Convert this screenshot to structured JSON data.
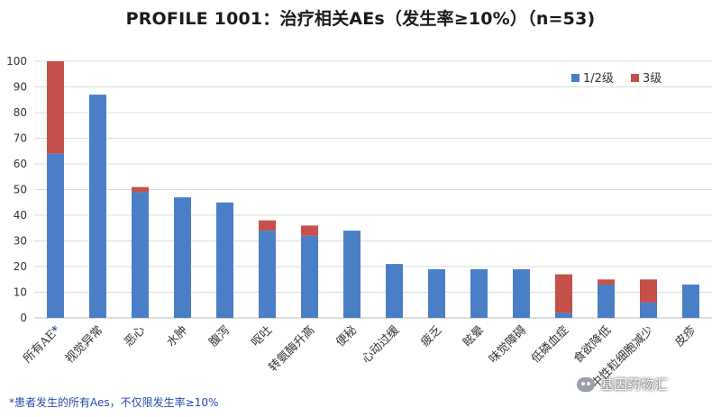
{
  "title": "PROFILE 1001：治疗相关AEs（发生率≥10%）（n=53)",
  "footnote": "*患者发生的所有Aes，不仅限发生率≥10%",
  "watermark": "基因药物汇",
  "colors": {
    "grade12": "#4a7fc7",
    "grade3": "#c6504a",
    "asterisk": "#2a4aa8"
  },
  "chart_data": {
    "type": "bar",
    "stacked": true,
    "categories": [
      "所有AE*",
      "视觉异常",
      "恶心",
      "水肿",
      "腹泻",
      "呕吐",
      "转氨酶升高",
      "便秘",
      "心动过缓",
      "疲乏",
      "眩晕",
      "味觉障碍",
      "低磷血症",
      "食欲降低",
      "中性粒细胞减少",
      "皮疹"
    ],
    "series": [
      {
        "name": "1/2级",
        "values": [
          64,
          87,
          49,
          47,
          45,
          34,
          32,
          34,
          21,
          19,
          19,
          19,
          2,
          13,
          6,
          13
        ]
      },
      {
        "name": "3级",
        "values": [
          36,
          0,
          2,
          0,
          0,
          4,
          4,
          0,
          0,
          0,
          0,
          0,
          15,
          2,
          9,
          0
        ]
      }
    ],
    "ylim": [
      0,
      100
    ],
    "yticks": [
      0,
      10,
      20,
      30,
      40,
      50,
      60,
      70,
      80,
      90,
      100
    ],
    "grid": true,
    "legend_position": "top-right"
  }
}
